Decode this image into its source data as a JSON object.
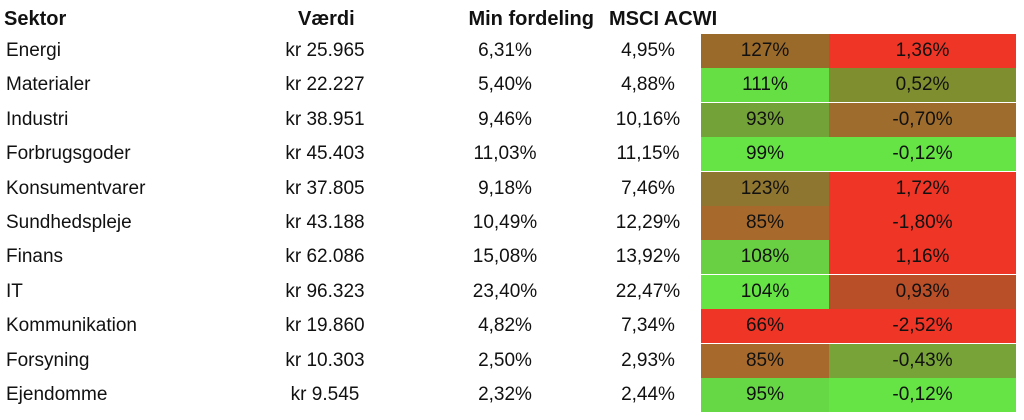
{
  "headers": {
    "sector": "Sektor",
    "value": "Værdi",
    "my_allocation": "Min fordeling",
    "msci": "MSCI ACWI",
    "ratio": "",
    "difference": ""
  },
  "rows": [
    {
      "sector": "Energi",
      "value": "kr 25.965",
      "my_allocation": "6,31%",
      "msci": "4,95%",
      "ratio": "127%",
      "difference": "1,36%",
      "ratio_color": "#9a6a2a",
      "difference_color": "#ee3526"
    },
    {
      "sector": "Materialer",
      "value": "kr 22.227",
      "my_allocation": "5,40%",
      "msci": "4,88%",
      "ratio": "111%",
      "difference": "0,52%",
      "ratio_color": "#66df45",
      "difference_color": "#7f8f30"
    },
    {
      "sector": "Industri",
      "value": "kr 38.951",
      "my_allocation": "9,46%",
      "msci": "10,16%",
      "ratio": "93%",
      "difference": "-0,70%",
      "ratio_color": "#73a238",
      "difference_color": "#9e6c2c"
    },
    {
      "sector": "Forbrugsgoder",
      "value": "kr 45.403",
      "my_allocation": "11,03%",
      "msci": "11,15%",
      "ratio": "99%",
      "difference": "-0,12%",
      "ratio_color": "#66e445",
      "difference_color": "#66e445"
    },
    {
      "sector": "Konsumentvarer",
      "value": "kr 37.805",
      "my_allocation": "9,18%",
      "msci": "7,46%",
      "ratio": "123%",
      "difference": "1,72%",
      "ratio_color": "#8f7630",
      "difference_color": "#ee3526"
    },
    {
      "sector": "Sundhedspleje",
      "value": "kr 43.188",
      "my_allocation": "10,49%",
      "msci": "12,29%",
      "ratio": "85%",
      "difference": "-1,80%",
      "ratio_color": "#a86a2c",
      "difference_color": "#ee3526"
    },
    {
      "sector": "Finans",
      "value": "kr 62.086",
      "my_allocation": "15,08%",
      "msci": "13,92%",
      "ratio": "108%",
      "difference": "1,16%",
      "ratio_color": "#6ad043",
      "difference_color": "#ee3526"
    },
    {
      "sector": "IT",
      "value": "kr 96.323",
      "my_allocation": "23,40%",
      "msci": "22,47%",
      "ratio": "104%",
      "difference": "0,93%",
      "ratio_color": "#66e445",
      "difference_color": "#b94f29"
    },
    {
      "sector": "Kommunikation",
      "value": "kr 19.860",
      "my_allocation": "4,82%",
      "msci": "7,34%",
      "ratio": "66%",
      "difference": "-2,52%",
      "ratio_color": "#ee3526",
      "difference_color": "#ee3526"
    },
    {
      "sector": "Forsyning",
      "value": "kr 10.303",
      "my_allocation": "2,50%",
      "msci": "2,93%",
      "ratio": "85%",
      "difference": "-0,43%",
      "ratio_color": "#a86a2c",
      "difference_color": "#77a339"
    },
    {
      "sector": "Ejendomme",
      "value": "kr 9.545",
      "my_allocation": "2,32%",
      "msci": "2,44%",
      "ratio": "95%",
      "difference": "-0,12%",
      "ratio_color": "#66d845",
      "difference_color": "#66e445"
    }
  ]
}
